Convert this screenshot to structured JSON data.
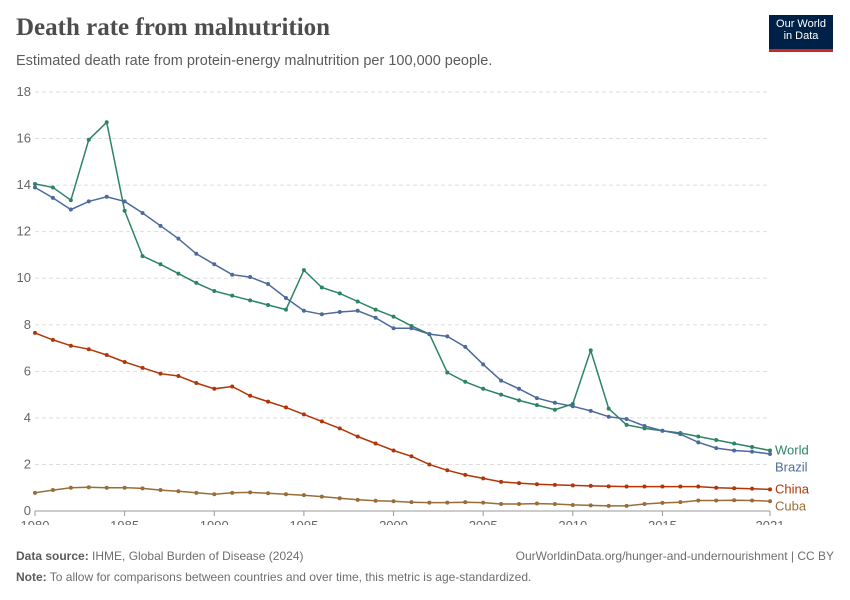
{
  "header": {
    "title": "Death rate from malnutrition",
    "subtitle": "Estimated death rate from protein-energy malnutrition per 100,000 people."
  },
  "logo": {
    "line1": "Our World",
    "line2": "in Data",
    "bg": "#002147",
    "accent": "#ce261e"
  },
  "footer": {
    "source_label": "Data source:",
    "source_text": "IHME, Global Burden of Disease (2024)",
    "url_text": "OurWorldinData.org/hunger-and-undernourishment | CC BY",
    "note_label": "Note:",
    "note_text": "To allow for comparisons between countries and over time, this metric is age-standardized."
  },
  "chart_data": {
    "type": "line",
    "ylim": [
      0,
      18
    ],
    "yticks": [
      0,
      2,
      4,
      6,
      8,
      10,
      12,
      14,
      16,
      18
    ],
    "xlim": [
      1980,
      2021
    ],
    "xticks": [
      1980,
      1985,
      1990,
      1995,
      2000,
      2005,
      2010,
      2015,
      2021
    ],
    "grid": "horizontal",
    "legend": "right, end of lines",
    "x": [
      1980,
      1981,
      1982,
      1983,
      1984,
      1985,
      1986,
      1987,
      1988,
      1989,
      1990,
      1991,
      1992,
      1993,
      1994,
      1995,
      1996,
      1997,
      1998,
      1999,
      2000,
      2001,
      2002,
      2003,
      2004,
      2005,
      2006,
      2007,
      2008,
      2009,
      2010,
      2011,
      2012,
      2013,
      2014,
      2015,
      2016,
      2017,
      2018,
      2019,
      2020,
      2021
    ],
    "series": [
      {
        "name": "World",
        "color": "#2c8465",
        "values": [
          14.05,
          13.9,
          13.35,
          15.95,
          16.7,
          12.9,
          10.95,
          10.6,
          10.2,
          9.8,
          9.45,
          9.25,
          9.05,
          8.85,
          8.65,
          10.35,
          9.6,
          9.35,
          9.0,
          8.65,
          8.35,
          7.95,
          7.6,
          5.95,
          5.55,
          5.25,
          5.0,
          4.75,
          4.55,
          4.35,
          4.6,
          6.9,
          4.4,
          3.7,
          3.55,
          3.45,
          3.35,
          3.2,
          3.05,
          2.9,
          2.75,
          2.6
        ]
      },
      {
        "name": "Brazil",
        "color": "#4c6a9c",
        "values": [
          13.9,
          13.45,
          12.95,
          13.3,
          13.5,
          13.3,
          12.8,
          12.25,
          11.7,
          11.05,
          10.6,
          10.15,
          10.05,
          9.75,
          9.15,
          8.6,
          8.45,
          8.55,
          8.6,
          8.3,
          7.85,
          7.85,
          7.6,
          7.5,
          7.05,
          6.3,
          5.6,
          5.25,
          4.85,
          4.65,
          4.5,
          4.3,
          4.05,
          3.95,
          3.65,
          3.45,
          3.3,
          2.95,
          2.7,
          2.6,
          2.55,
          2.45
        ]
      },
      {
        "name": "China",
        "color": "#b13507",
        "values": [
          7.65,
          7.35,
          7.1,
          6.95,
          6.7,
          6.4,
          6.15,
          5.9,
          5.8,
          5.5,
          5.25,
          5.35,
          4.95,
          4.7,
          4.45,
          4.15,
          3.85,
          3.55,
          3.2,
          2.9,
          2.6,
          2.35,
          2.0,
          1.75,
          1.55,
          1.4,
          1.25,
          1.2,
          1.15,
          1.12,
          1.1,
          1.08,
          1.06,
          1.05,
          1.05,
          1.05,
          1.05,
          1.05,
          1.0,
          0.98,
          0.96,
          0.93
        ]
      },
      {
        "name": "Cuba",
        "color": "#996d39",
        "values": [
          0.78,
          0.9,
          1.0,
          1.02,
          1.0,
          1.0,
          0.97,
          0.9,
          0.85,
          0.78,
          0.72,
          0.78,
          0.8,
          0.76,
          0.72,
          0.68,
          0.62,
          0.55,
          0.48,
          0.44,
          0.42,
          0.38,
          0.36,
          0.36,
          0.38,
          0.36,
          0.3,
          0.3,
          0.32,
          0.3,
          0.26,
          0.24,
          0.22,
          0.22,
          0.3,
          0.35,
          0.38,
          0.45,
          0.45,
          0.46,
          0.45,
          0.42
        ]
      }
    ]
  }
}
